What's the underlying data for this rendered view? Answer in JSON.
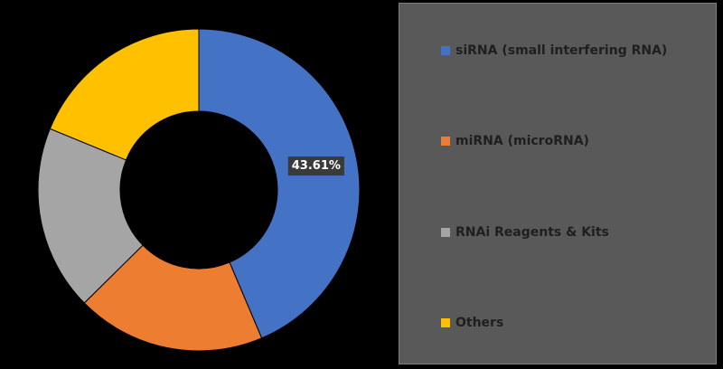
{
  "chart_data": {
    "type": "pie",
    "variant": "donut",
    "categories": [
      "siRNA (small interfering RNA)",
      "miRNA (microRNA)",
      "RNAi Reagents & Kits",
      "Others"
    ],
    "values": [
      43.61,
      19.0,
      18.6,
      18.79
    ],
    "colors": [
      "#4472C4",
      "#ED7D31",
      "#A5A5A5",
      "#FFC000"
    ],
    "data_labels": [
      {
        "category": "siRNA (small interfering RNA)",
        "text": "43.61%"
      }
    ],
    "legend_position": "right",
    "title": ""
  }
}
